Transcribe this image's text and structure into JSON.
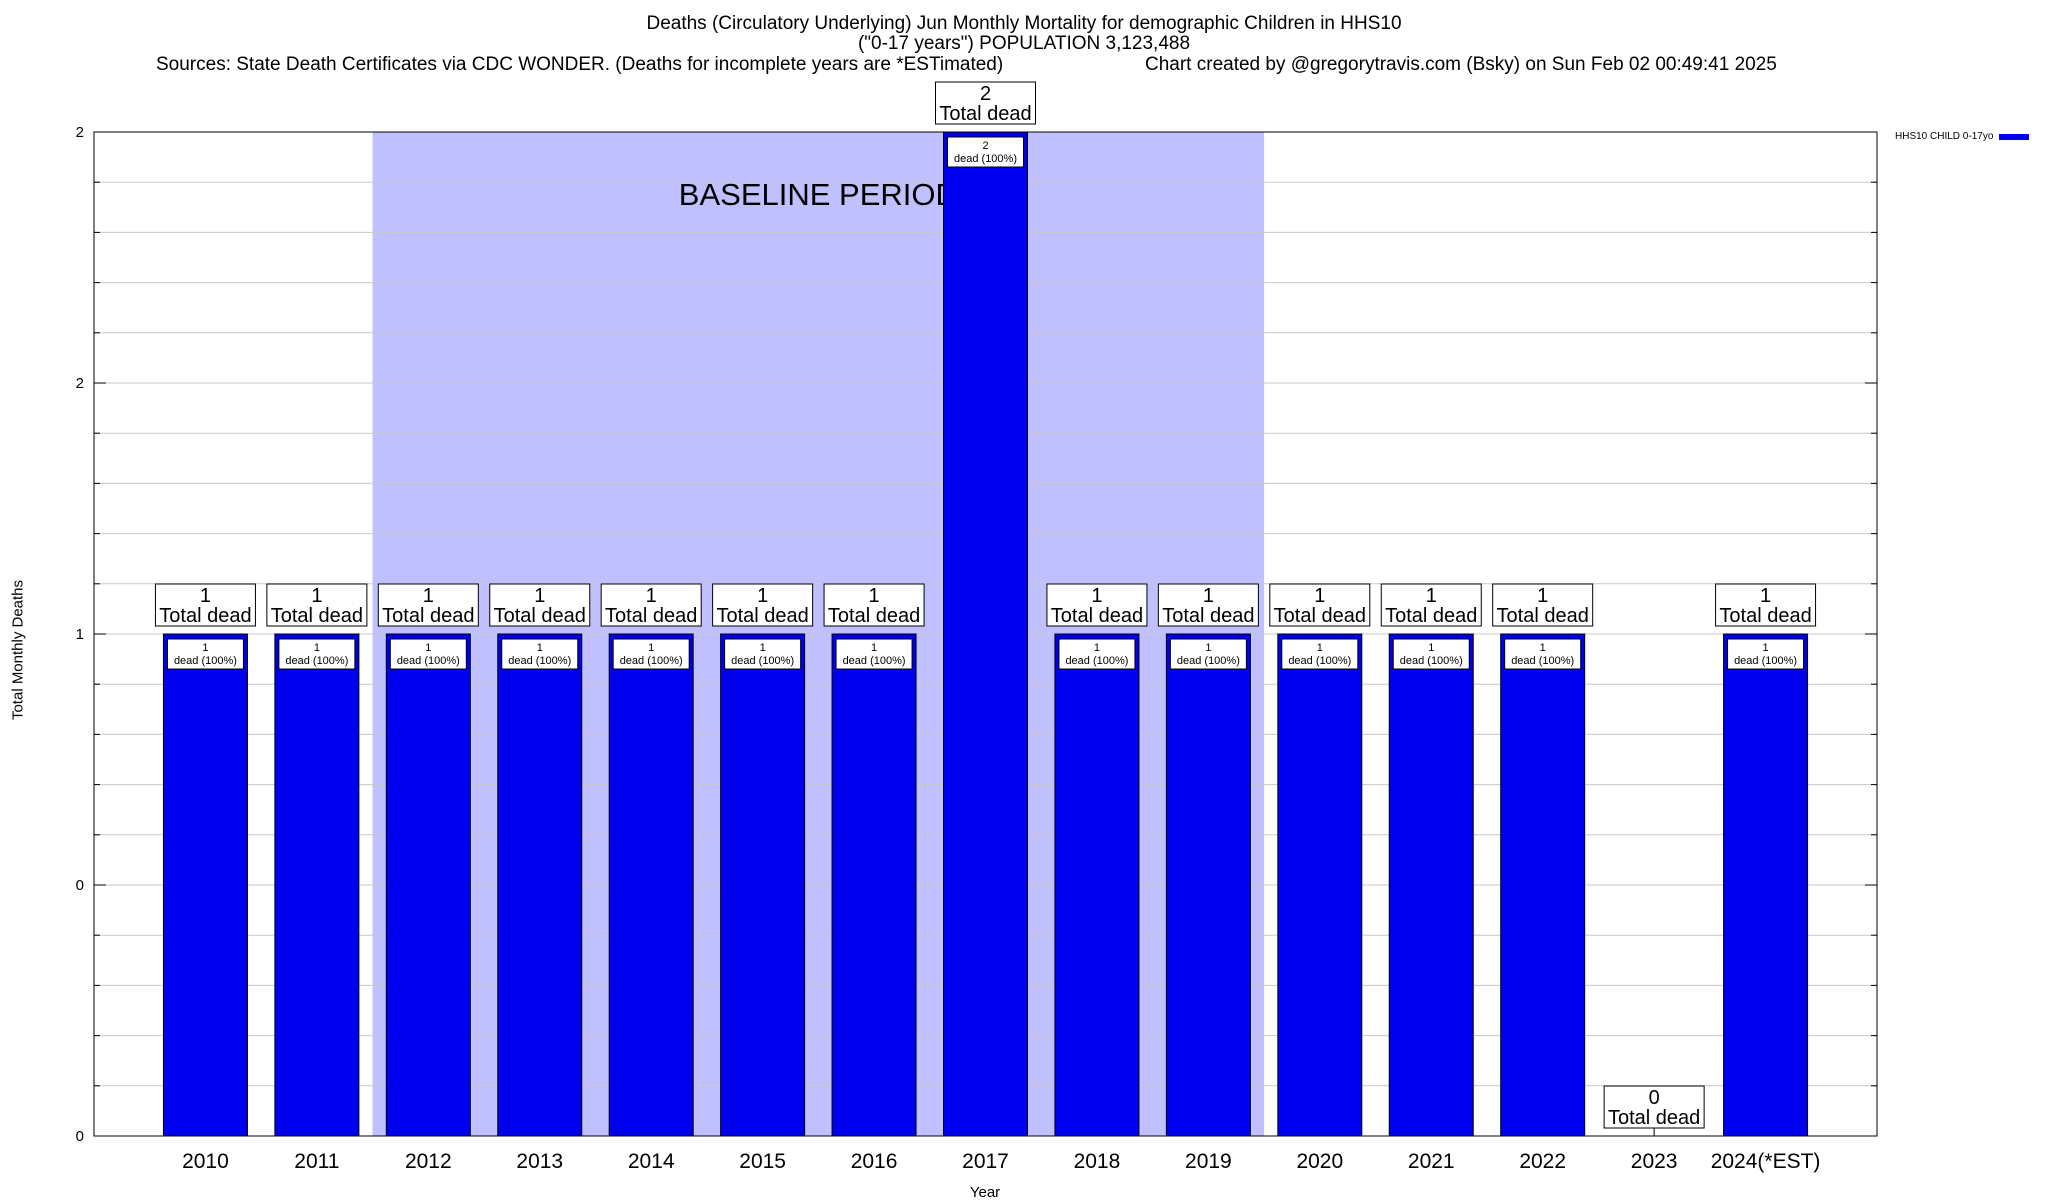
{
  "title": {
    "line1": "Deaths (Circulatory Underlying) Jun Monthly Mortality for demographic Children in HHS10",
    "line2": "(\"0-17 years\") POPULATION 3,123,488",
    "sources": "Sources: State Death Certificates via CDC WONDER. (Deaths for incomplete years are *ESTimated)",
    "credit": "Chart created by @gregorytravis.com (Bsky) on Sun Feb 02 00:49:41 2025"
  },
  "legend": {
    "label": "HHS10 CHILD 0-17yo",
    "color": "#0000ee"
  },
  "colors": {
    "bar": "#0000ee",
    "baseline": "#c0c0ff",
    "grid": "#c8c8c8"
  },
  "chart_data": {
    "type": "bar",
    "title": "Deaths (Circulatory Underlying) Jun Monthly Mortality for demographic Children in HHS10",
    "xlabel": "Year",
    "ylabel": "Total Monthly Deaths",
    "ylim": [
      0,
      2
    ],
    "ytick_values": [
      0,
      0.5,
      1,
      1.5,
      2
    ],
    "ytick_labels": [
      "0",
      "0",
      "1",
      "2",
      "2"
    ],
    "grid": true,
    "legend_position": "top-right",
    "categories": [
      "2010",
      "2011",
      "2012",
      "2013",
      "2014",
      "2015",
      "2016",
      "2017",
      "2018",
      "2019",
      "2020",
      "2021",
      "2022",
      "2023",
      "2024(*EST)"
    ],
    "series": [
      {
        "name": "HHS10 CHILD 0-17yo",
        "values": [
          1,
          1,
          1,
          1,
          1,
          1,
          1,
          2,
          1,
          1,
          1,
          1,
          1,
          0,
          1
        ]
      }
    ],
    "total_label_suffix": "Total dead",
    "inner_label_suffix": "dead (100%)",
    "baseline_period": {
      "label": "BASELINE PERIOD",
      "start": "2012",
      "end": "2019"
    }
  }
}
